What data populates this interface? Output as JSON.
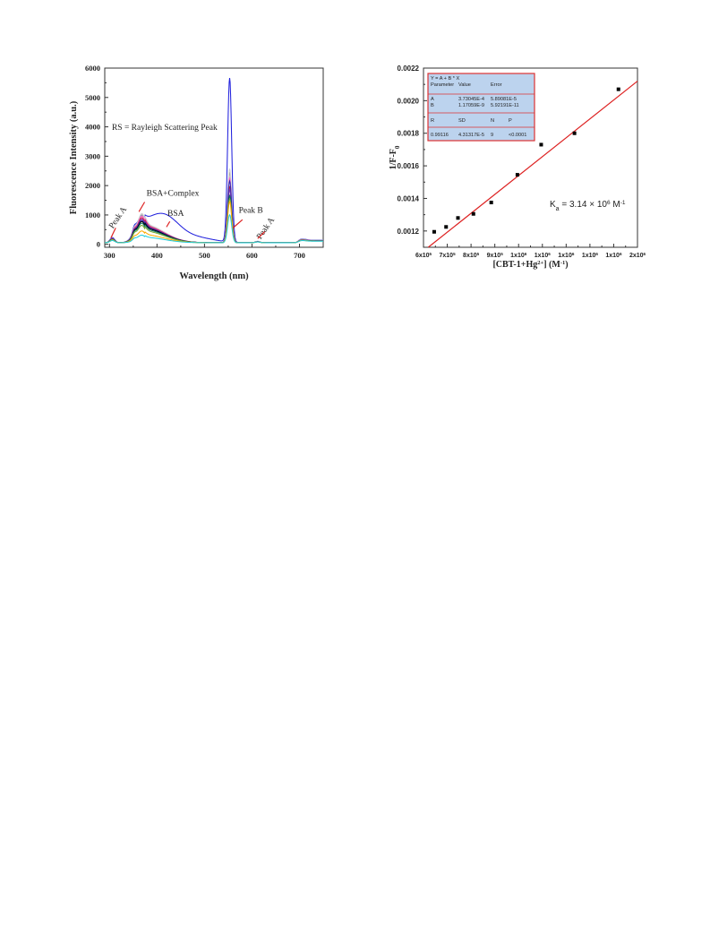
{
  "chart_data": [
    {
      "type": "line",
      "xlabel": "Wavelength (nm)",
      "ylabel": "Fluorescence Intensity (a.u.)",
      "xlim": [
        290,
        750
      ],
      "ylim": [
        -100,
        6000
      ],
      "x_ticks": [
        300,
        400,
        500,
        600,
        700
      ],
      "y_ticks": [
        0,
        1000,
        2000,
        3000,
        4000,
        5000,
        6000
      ],
      "grid": false,
      "annotations": [
        {
          "text": "RS = Rayleigh Scattering Peak",
          "x": 305,
          "y": 3890
        },
        {
          "text": "BSA+Complex",
          "x": 378,
          "y": 1660
        },
        {
          "text": "BSA",
          "x": 422,
          "y": 970
        },
        {
          "text": "Peak A",
          "x": 307,
          "y": 520,
          "rotate": -55
        },
        {
          "text": "Peak B",
          "x": 572,
          "y": 1080
        },
        {
          "text": "Peak A",
          "x": 618,
          "y": 160,
          "rotate": -55
        }
      ],
      "arrows": [
        {
          "from": [
            313,
            560
          ],
          "to": [
            303,
            220
          ]
        },
        {
          "from": [
            374,
            1440
          ],
          "to": [
            362,
            1110
          ]
        },
        {
          "from": [
            427,
            780
          ],
          "to": [
            420,
            590
          ]
        },
        {
          "from": [
            580,
            840
          ],
          "to": [
            560,
            560
          ]
        },
        {
          "from": [
            627,
            430
          ],
          "to": [
            612,
            200
          ]
        }
      ],
      "series": [
        {
          "color": "#2222dd",
          "values": {
            "p1": 230,
            "pb": 830,
            "pk": 870,
            "fl": 540,
            "rs": 5580,
            "tail": 130
          }
        },
        {
          "color": "#999999",
          "values": {
            "p1": 200,
            "pb": 750,
            "pk": 1000,
            "fl": 0,
            "rs": 2400,
            "tail": 110
          }
        },
        {
          "color": "#d2d2d2",
          "values": {
            "p1": 200,
            "pb": 780,
            "pk": 1050,
            "fl": 0,
            "rs": 2520,
            "tail": 120
          }
        },
        {
          "color": "#ff66cc",
          "values": {
            "p1": 195,
            "pb": 720,
            "pk": 950,
            "fl": 0,
            "rs": 2200,
            "tail": 105
          }
        },
        {
          "color": "#cc2244",
          "values": {
            "p1": 190,
            "pb": 700,
            "pk": 900,
            "fl": 0,
            "rs": 1900,
            "tail": 100
          }
        },
        {
          "color": "#8833aa",
          "values": {
            "p1": 185,
            "pb": 670,
            "pk": 850,
            "fl": 0,
            "rs": 1800,
            "tail": 95
          }
        },
        {
          "color": "#2b2bb0",
          "values": {
            "p1": 180,
            "pb": 640,
            "pk": 800,
            "fl": 0,
            "rs": 2100,
            "tail": 95
          }
        },
        {
          "color": "#000000",
          "values": {
            "p1": 175,
            "pb": 610,
            "pk": 760,
            "fl": 0,
            "rs": 1600,
            "tail": 90
          }
        },
        {
          "color": "#117766",
          "values": {
            "p1": 170,
            "pb": 560,
            "pk": 700,
            "fl": 0,
            "rs": 1600,
            "tail": 90
          }
        },
        {
          "color": "#77aa33",
          "values": {
            "p1": 160,
            "pb": 500,
            "pk": 620,
            "fl": 0,
            "rs": 1500,
            "tail": 85
          }
        },
        {
          "color": "#ffaa00",
          "values": {
            "p1": 140,
            "pb": 340,
            "pk": 420,
            "fl": 0,
            "rs": 1400,
            "tail": 80
          }
        },
        {
          "color": "#22ccdd",
          "values": {
            "p1": 130,
            "pb": 230,
            "pk": 270,
            "fl": 0,
            "rs": 950,
            "tail": 75
          }
        }
      ]
    },
    {
      "type": "scatter",
      "xlabel_main": "[CBT-1+Hg",
      "xlabel_sup": "2+",
      "xlabel_unit": "] (M",
      "xlabel_unit_sup": "-1",
      "xlabel_close": ")",
      "ylabel": "1/F-F",
      "ylabel_sub": "0",
      "x_tick_labels": [
        {
          "base": "6x10",
          "exp": "5"
        },
        {
          "base": "7x10",
          "exp": "5"
        },
        {
          "base": "8x10",
          "exp": "5"
        },
        {
          "base": "9x10",
          "exp": "5"
        },
        {
          "base": "1x10",
          "exp": "6"
        },
        {
          "base": "1x10",
          "exp": "6"
        },
        {
          "base": "1x10",
          "exp": "6"
        },
        {
          "base": "1x10",
          "exp": "6"
        },
        {
          "base": "1x10",
          "exp": "6"
        },
        {
          "base": "2x10",
          "exp": "6"
        }
      ],
      "ylim": [
        0.0011,
        0.0022
      ],
      "y_ticks": [
        "0.0012",
        "0.0014",
        "0.0016",
        "0.0018",
        "0.0020",
        "0.0022"
      ],
      "tick_index_range": [
        0,
        9
      ],
      "points_tick_index": [
        0.45,
        0.95,
        1.45,
        2.1,
        2.85,
        3.95,
        4.95,
        6.35,
        8.2
      ],
      "points_y": [
        0.001195,
        0.001225,
        0.00128,
        0.001305,
        0.001375,
        0.001545,
        0.00173,
        0.0018,
        0.00207
      ],
      "fit_line_tick_index": [
        0.2,
        9.0
      ],
      "fit_line_y": [
        0.0011,
        0.00212
      ],
      "fit_color": "#dd2222",
      "annotation": {
        "prefix": "K",
        "sub": "a",
        "mid": " = 3.14 × 10",
        "sup": "6",
        "unit": " M",
        "unit_sup": "-1"
      },
      "fit_table": {
        "equation": "Y = A + B * X",
        "headers": [
          "Parameter",
          "Value",
          "Error"
        ],
        "rows": [
          [
            "A",
            "3.73045E-4",
            "5.89081E-5"
          ],
          [
            "B",
            "1.17059E-9",
            "5.92191E-11"
          ]
        ],
        "stat_headers": [
          "R",
          "SD",
          "N",
          "P"
        ],
        "stat_values": [
          "0.99116",
          "4.31317E-5",
          "9",
          "<0.0001"
        ]
      }
    }
  ]
}
